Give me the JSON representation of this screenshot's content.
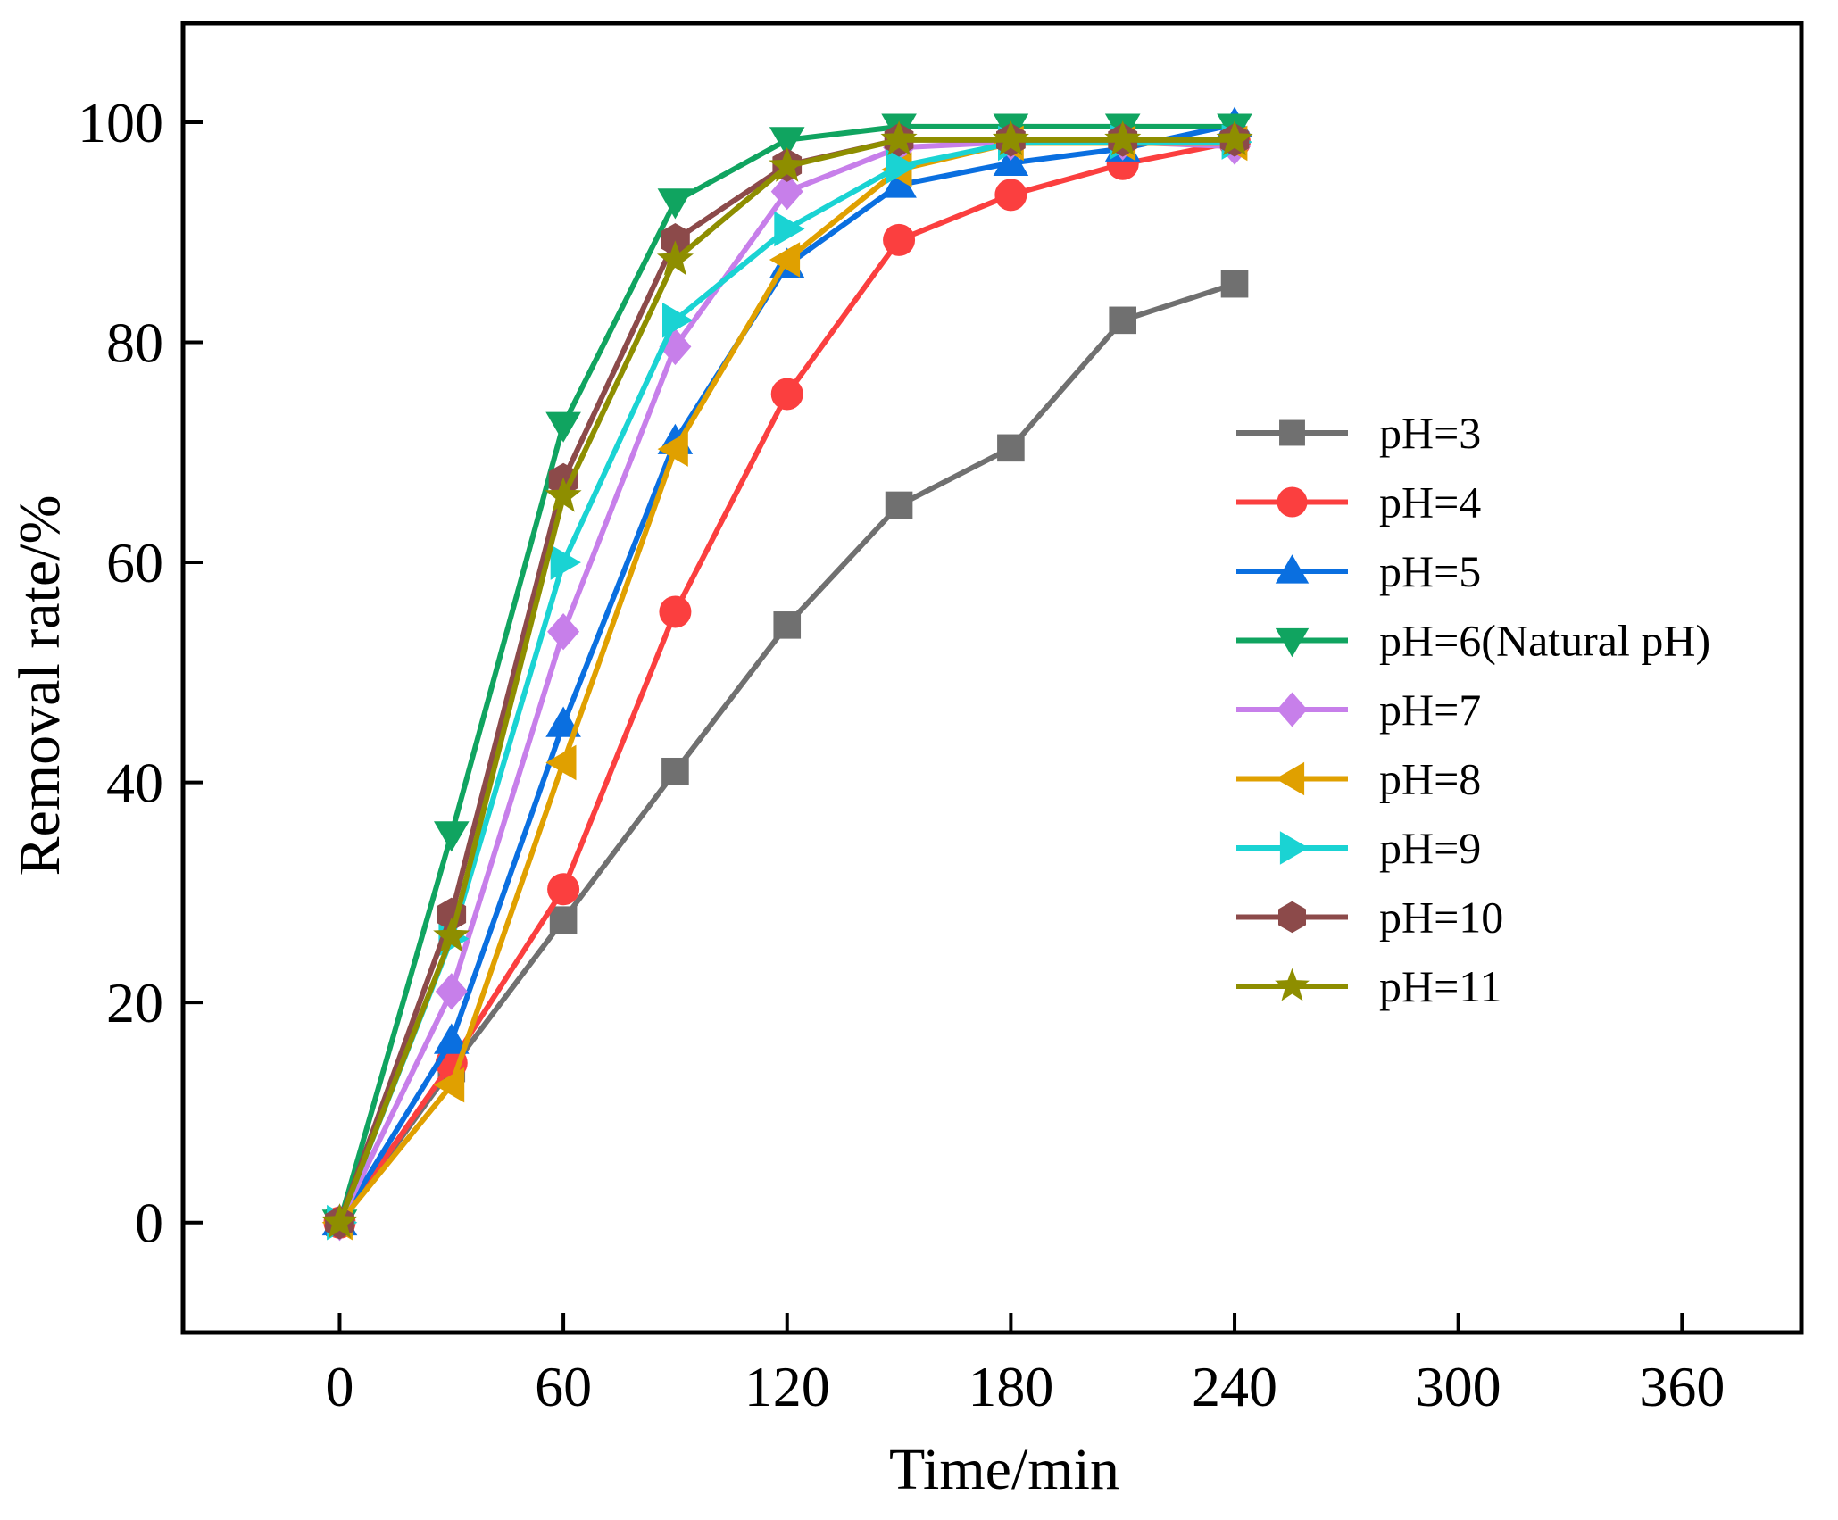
{
  "chart_data": {
    "type": "line",
    "title": "",
    "xlabel": "Time/min",
    "ylabel": "Removal rate/%",
    "xlim": [
      -42,
      392
    ],
    "ylim": [
      -10,
      109
    ],
    "xticks": [
      0,
      60,
      120,
      180,
      240,
      300,
      360
    ],
    "yticks": [
      0,
      20,
      40,
      60,
      80,
      100
    ],
    "xtick_labels": [
      "0",
      "60",
      "120",
      "180",
      "240",
      "300",
      "360"
    ],
    "ytick_labels": [
      "0",
      "20",
      "40",
      "60",
      "80",
      "100"
    ],
    "grid": false,
    "legend_position": "right",
    "x": [
      0,
      30,
      60,
      90,
      120,
      150,
      180,
      210,
      240
    ],
    "series": [
      {
        "name": "pH=3",
        "color": "#707070",
        "marker": "square",
        "values": [
          0,
          14.0,
          27.5,
          41.0,
          54.3,
          65.2,
          70.4,
          82.0,
          85.3
        ]
      },
      {
        "name": "pH=4",
        "color": "#fb3f3f",
        "marker": "circle",
        "values": [
          0,
          14.5,
          30.3,
          55.5,
          75.3,
          89.3,
          93.4,
          96.2,
          98.2
        ]
      },
      {
        "name": "pH=5",
        "color": "#0a6fe0",
        "marker": "triangle-up",
        "values": [
          0,
          16.5,
          45.3,
          71.0,
          87.0,
          94.3,
          96.3,
          97.6,
          99.8
        ]
      },
      {
        "name": "pH=6(Natural pH)",
        "color": "#10a460",
        "marker": "triangle-down",
        "values": [
          0,
          35.3,
          72.5,
          92.8,
          98.4,
          99.6,
          99.6,
          99.6,
          99.6
        ]
      },
      {
        "name": "pH=7",
        "color": "#c77fea",
        "marker": "diamond",
        "values": [
          0,
          21.0,
          53.7,
          79.6,
          93.7,
          97.7,
          98.2,
          98.2,
          97.8
        ]
      },
      {
        "name": "pH=8",
        "color": "#e0a000",
        "marker": "triangle-left",
        "values": [
          0,
          12.5,
          41.8,
          70.3,
          87.5,
          95.7,
          98.1,
          98.1,
          98.1
        ]
      },
      {
        "name": "pH=9",
        "color": "#1ad3d3",
        "marker": "triangle-right",
        "values": [
          0,
          25.8,
          60.0,
          82.0,
          90.3,
          96.0,
          98.1,
          98.2,
          98.2
        ]
      },
      {
        "name": "pH=10",
        "color": "#8c4a4a",
        "marker": "hexagon",
        "values": [
          0,
          28.0,
          67.5,
          89.3,
          96.1,
          98.4,
          98.4,
          98.4,
          98.4
        ]
      },
      {
        "name": "pH=11",
        "color": "#8e8e00",
        "marker": "star",
        "values": [
          0,
          26.0,
          66.0,
          87.5,
          96.0,
          98.4,
          98.4,
          98.4,
          98.4
        ]
      }
    ]
  }
}
